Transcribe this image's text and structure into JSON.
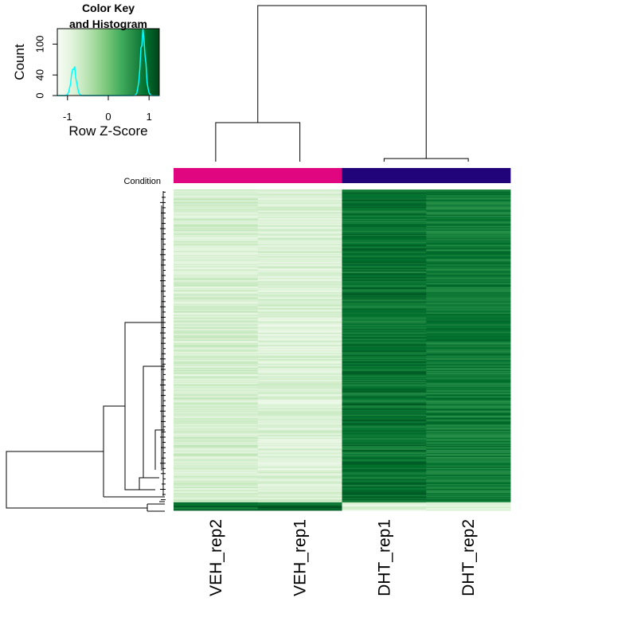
{
  "chart_data": {
    "type": "heatmap",
    "columns": [
      "VEH_rep2",
      "VEH_rep1",
      "DHT_rep1",
      "DHT_rep2"
    ],
    "column_annotation": {
      "label": "Condition",
      "groups": [
        {
          "name": "VEH",
          "color": "#e0067f",
          "columns": [
            "VEH_rep2",
            "VEH_rep1"
          ]
        },
        {
          "name": "DHT",
          "color": "#21047a",
          "columns": [
            "DHT_rep1",
            "DHT_rep2"
          ]
        }
      ]
    },
    "color_scale": {
      "name": "Greens",
      "range": [
        -1.25,
        1.25
      ],
      "stops": [
        "#f7fcf5",
        "#e5f5e0",
        "#c7e9c0",
        "#a1d99b",
        "#74c476",
        "#41ab5d",
        "#238b45",
        "#006d2c",
        "#00441b"
      ]
    },
    "row_groups": [
      {
        "rows": 310,
        "values": [
          -0.78,
          -0.85,
          0.86,
          0.78
        ]
      },
      {
        "rows": 8,
        "values": [
          0.9,
          0.95,
          -0.9,
          -0.95
        ]
      }
    ],
    "column_dendrogram": {
      "merges": [
        [
          "VEH_rep2",
          "VEH_rep1"
        ],
        [
          "DHT_rep1",
          "DHT_rep2"
        ],
        [
          "VEH",
          "DHT"
        ]
      ],
      "heights": [
        0.25,
        0.02,
        1.0
      ]
    },
    "color_key": {
      "title": "Color Key",
      "subtitle": "and Histogram",
      "xlabel": "Row Z-Score",
      "ylabel": "Count",
      "x_ticks": [
        "-1",
        "0",
        "1"
      ],
      "y_ticks": [
        "0",
        "40",
        "100"
      ],
      "xlim": [
        -1.25,
        1.25
      ],
      "ylim": [
        0,
        130
      ],
      "histogram_color": "#00ffff",
      "histogram_peaks": [
        {
          "z": -0.85,
          "count": 55
        },
        {
          "z": 0.85,
          "count": 120
        }
      ]
    }
  }
}
